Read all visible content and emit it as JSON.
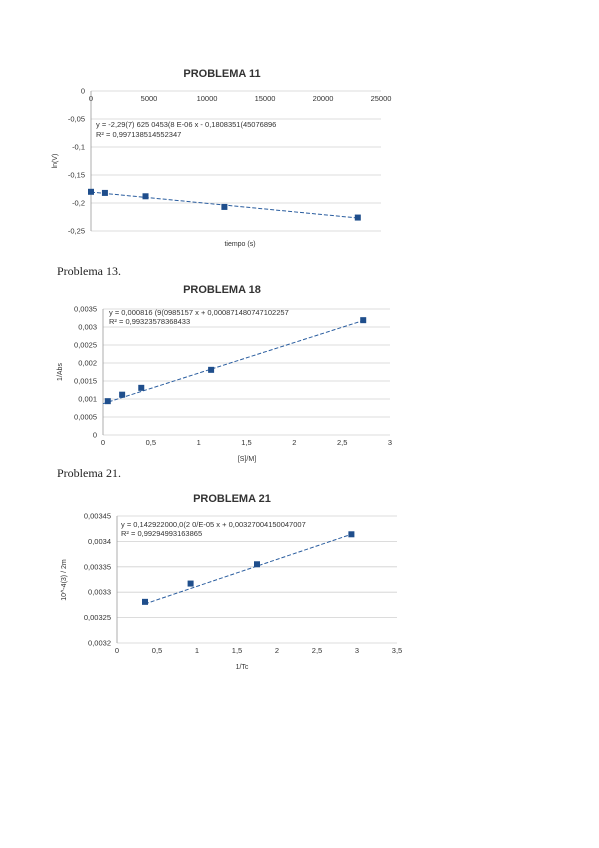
{
  "texts": {
    "p13": "Problema 13.",
    "p21": "Problema 21."
  },
  "chart_data": [
    {
      "type": "scatter",
      "title": "PROBLEMA 11",
      "xlabel": "tiempo (s)",
      "ylabel": "ln(V)",
      "xlim": [
        0,
        25000
      ],
      "ylim": [
        -0.25,
        0
      ],
      "xticks": [
        0,
        5000,
        10000,
        15000,
        20000,
        25000
      ],
      "xtick_labels": [
        "0",
        "5000",
        "10000",
        "15000",
        "20000",
        "25000"
      ],
      "yticks": [
        0,
        -0.05,
        -0.1,
        -0.15,
        -0.2,
        -0.25
      ],
      "ytick_labels": [
        "0",
        "-0,05",
        "-0,1",
        "-0,15",
        "-0,2",
        "-0,25"
      ],
      "x_axis_at_top": true,
      "equation": "y = -2,29(7) 625 0453(8 E-06 x - 0,1808351(45076896",
      "r2": "R² = 0,997138514552347",
      "points": [
        [
          0,
          -0.18
        ],
        [
          1200,
          -0.182
        ],
        [
          4700,
          -0.188
        ],
        [
          11500,
          -0.207
        ],
        [
          23000,
          -0.226
        ]
      ],
      "trend": [
        [
          0,
          -0.1805
        ],
        [
          23000,
          -0.2268
        ]
      ],
      "grid": true
    },
    {
      "type": "scatter",
      "title": "PROBLEMA 18",
      "xlabel": "[S]/M]",
      "ylabel": "1/Abs",
      "xlim": [
        0,
        3
      ],
      "ylim": [
        0,
        0.0035
      ],
      "xticks": [
        0,
        0.5,
        1,
        1.5,
        2,
        2.5,
        3
      ],
      "xtick_labels": [
        "0",
        "0,5",
        "1",
        "1,5",
        "2",
        "2,5",
        "3"
      ],
      "yticks": [
        0,
        0.0005,
        0.001,
        0.0015,
        0.002,
        0.0025,
        0.003,
        0.0035
      ],
      "ytick_labels": [
        "0",
        "0,0005",
        "0,001",
        "0,0015",
        "0,002",
        "0,0025",
        "0,003",
        "0,0035"
      ],
      "equation": "y = 0,000816 (9(0985157 x + 0,000871480747102257",
      "r2": "R² = 0,99323578368433",
      "points": [
        [
          0.05,
          0.00094
        ],
        [
          0.2,
          0.00112
        ],
        [
          0.4,
          0.00131
        ],
        [
          1.13,
          0.00181
        ],
        [
          2.72,
          0.00319
        ]
      ],
      "trend": [
        [
          0,
          0.00087
        ],
        [
          2.72,
          0.00318
        ]
      ],
      "grid": true
    },
    {
      "type": "scatter",
      "title": "PROBLEMA 21",
      "xlabel": "1/Tc",
      "ylabel": "10^-4(3) / 2m",
      "xlim": [
        0,
        3.5
      ],
      "ylim": [
        0.0032,
        0.00345
      ],
      "xticks": [
        0,
        0.5,
        1,
        1.5,
        2,
        2.5,
        3,
        3.5
      ],
      "xtick_labels": [
        "0",
        "0,5",
        "1",
        "1,5",
        "2",
        "2,5",
        "3",
        "3,5"
      ],
      "yticks": [
        0.0032,
        0.00325,
        0.0033,
        0.00335,
        0.0034,
        0.00345
      ],
      "ytick_labels": [
        "0,0032",
        "0,00325",
        "0,0033",
        "0,00335",
        "0,0034",
        "0,00345"
      ],
      "equation": "y = 0,142922000,0(2 0/E-05 x + 0,00327004150047007",
      "r2": "R² = 0,99294993163865",
      "points": [
        [
          0.35,
          0.003281
        ],
        [
          0.92,
          0.003317
        ],
        [
          1.75,
          0.003355
        ],
        [
          2.93,
          0.003414
        ]
      ],
      "trend": [
        [
          0.35,
          0.003277
        ],
        [
          2.93,
          0.003414
        ]
      ],
      "grid": true
    }
  ]
}
